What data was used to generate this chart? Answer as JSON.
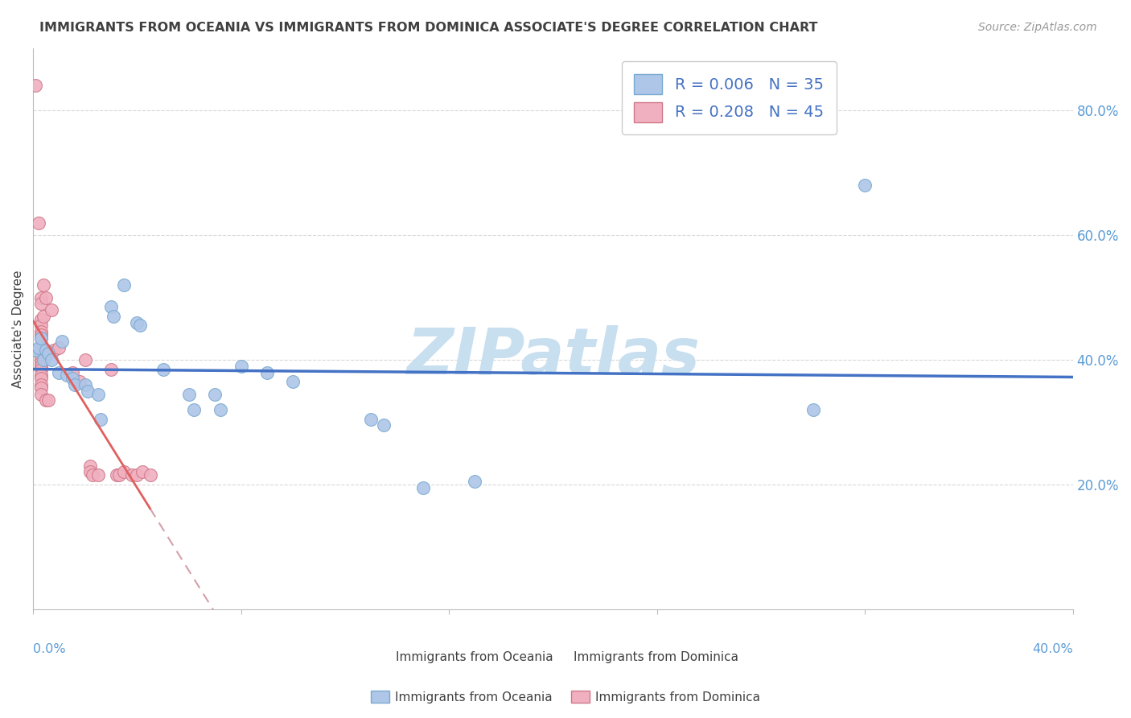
{
  "title": "IMMIGRANTS FROM OCEANIA VS IMMIGRANTS FROM DOMINICA ASSOCIATE'S DEGREE CORRELATION CHART",
  "source": "Source: ZipAtlas.com",
  "ylabel": "Associate's Degree",
  "y_axis_ticks_vals": [
    0.2,
    0.4,
    0.6,
    0.8
  ],
  "y_axis_ticks_labels": [
    "20.0%",
    "40.0%",
    "60.0%",
    "80.0%"
  ],
  "xlim": [
    0.0,
    0.4
  ],
  "ylim": [
    0.0,
    0.9
  ],
  "oceania_points": [
    [
      0.001,
      0.415
    ],
    [
      0.002,
      0.42
    ],
    [
      0.003,
      0.435
    ],
    [
      0.004,
      0.4
    ],
    [
      0.005,
      0.415
    ],
    [
      0.006,
      0.41
    ],
    [
      0.007,
      0.4
    ],
    [
      0.01,
      0.38
    ],
    [
      0.011,
      0.43
    ],
    [
      0.013,
      0.375
    ],
    [
      0.015,
      0.37
    ],
    [
      0.016,
      0.36
    ],
    [
      0.02,
      0.36
    ],
    [
      0.021,
      0.35
    ],
    [
      0.025,
      0.345
    ],
    [
      0.026,
      0.305
    ],
    [
      0.03,
      0.485
    ],
    [
      0.031,
      0.47
    ],
    [
      0.035,
      0.52
    ],
    [
      0.04,
      0.46
    ],
    [
      0.041,
      0.455
    ],
    [
      0.05,
      0.385
    ],
    [
      0.06,
      0.345
    ],
    [
      0.062,
      0.32
    ],
    [
      0.07,
      0.345
    ],
    [
      0.072,
      0.32
    ],
    [
      0.08,
      0.39
    ],
    [
      0.09,
      0.38
    ],
    [
      0.1,
      0.365
    ],
    [
      0.13,
      0.305
    ],
    [
      0.135,
      0.295
    ],
    [
      0.15,
      0.195
    ],
    [
      0.17,
      0.205
    ],
    [
      0.3,
      0.32
    ],
    [
      0.32,
      0.68
    ]
  ],
  "dominica_points": [
    [
      0.001,
      0.84
    ],
    [
      0.002,
      0.62
    ],
    [
      0.003,
      0.5
    ],
    [
      0.003,
      0.49
    ],
    [
      0.003,
      0.465
    ],
    [
      0.003,
      0.455
    ],
    [
      0.003,
      0.445
    ],
    [
      0.003,
      0.44
    ],
    [
      0.003,
      0.435
    ],
    [
      0.003,
      0.42
    ],
    [
      0.003,
      0.415
    ],
    [
      0.003,
      0.41
    ],
    [
      0.003,
      0.405
    ],
    [
      0.003,
      0.4
    ],
    [
      0.003,
      0.395
    ],
    [
      0.003,
      0.39
    ],
    [
      0.003,
      0.385
    ],
    [
      0.003,
      0.375
    ],
    [
      0.003,
      0.37
    ],
    [
      0.003,
      0.36
    ],
    [
      0.003,
      0.355
    ],
    [
      0.003,
      0.345
    ],
    [
      0.004,
      0.52
    ],
    [
      0.004,
      0.47
    ],
    [
      0.005,
      0.5
    ],
    [
      0.005,
      0.335
    ],
    [
      0.006,
      0.335
    ],
    [
      0.007,
      0.48
    ],
    [
      0.008,
      0.415
    ],
    [
      0.01,
      0.42
    ],
    [
      0.015,
      0.38
    ],
    [
      0.018,
      0.365
    ],
    [
      0.02,
      0.4
    ],
    [
      0.022,
      0.23
    ],
    [
      0.022,
      0.22
    ],
    [
      0.023,
      0.215
    ],
    [
      0.025,
      0.215
    ],
    [
      0.03,
      0.385
    ],
    [
      0.032,
      0.215
    ],
    [
      0.033,
      0.215
    ],
    [
      0.035,
      0.22
    ],
    [
      0.038,
      0.215
    ],
    [
      0.04,
      0.215
    ],
    [
      0.042,
      0.22
    ],
    [
      0.045,
      0.215
    ]
  ],
  "oceania_line_color": "#4472c4",
  "dominica_line_color": "#e06060",
  "dominica_trend_dashed_color": "#d4a0a8",
  "bg_color": "#ffffff",
  "grid_color": "#d8d8d8",
  "title_color": "#404040",
  "axis_label_color": "#5b9bd5",
  "watermark_text": "ZIPatlas",
  "watermark_color": "#c8dff0",
  "scatter_oceania_face": "#aec6e8",
  "scatter_oceania_edge": "#7aaad0",
  "scatter_dominica_face": "#f0b0c0",
  "scatter_dominica_edge": "#d07888"
}
